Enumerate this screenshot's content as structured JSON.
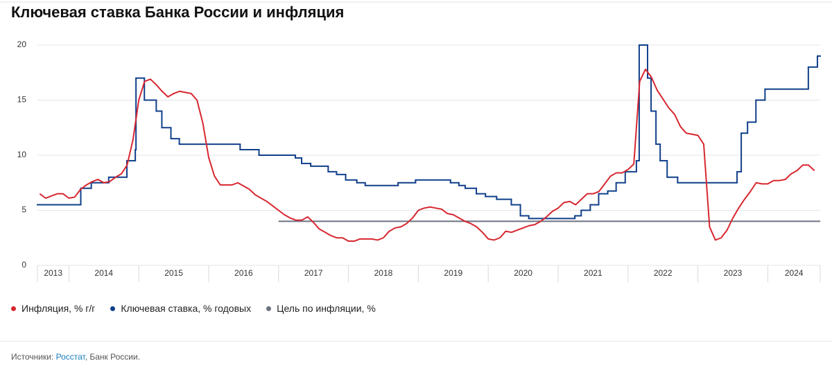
{
  "chart_data": {
    "type": "line",
    "title": "Ключевая ставка Банка России и инфляция",
    "xlim": [
      2013.55,
      2024.75
    ],
    "xticks": [
      {
        "value": 2013.55,
        "label": "2013"
      },
      2014,
      2015,
      2016,
      2017,
      2018,
      2019,
      2020,
      2021,
      2022,
      2023,
      2024
    ],
    "ylim": [
      0,
      20
    ],
    "yticks": [
      0,
      5,
      10,
      15,
      20
    ],
    "grid": true,
    "legend": "bottom",
    "series": [
      {
        "name": "Инфляция, % г/г",
        "color": "#d7262f",
        "step": false,
        "x": [
          2013.583,
          2013.667,
          2013.75,
          2013.833,
          2013.917,
          2014,
          2014.083,
          2014.167,
          2014.25,
          2014.333,
          2014.417,
          2014.5,
          2014.583,
          2014.667,
          2014.75,
          2014.833,
          2014.917,
          2015,
          2015.083,
          2015.167,
          2015.25,
          2015.333,
          2015.417,
          2015.5,
          2015.583,
          2015.667,
          2015.75,
          2015.833,
          2015.917,
          2016,
          2016.083,
          2016.167,
          2016.25,
          2016.333,
          2016.417,
          2016.5,
          2016.583,
          2016.667,
          2016.75,
          2016.833,
          2016.917,
          2017,
          2017.083,
          2017.167,
          2017.25,
          2017.333,
          2017.417,
          2017.5,
          2017.583,
          2017.667,
          2017.75,
          2017.833,
          2017.917,
          2018,
          2018.083,
          2018.167,
          2018.25,
          2018.333,
          2018.417,
          2018.5,
          2018.583,
          2018.667,
          2018.75,
          2018.833,
          2018.917,
          2019,
          2019.083,
          2019.167,
          2019.25,
          2019.333,
          2019.417,
          2019.5,
          2019.583,
          2019.667,
          2019.75,
          2019.833,
          2019.917,
          2020,
          2020.083,
          2020.167,
          2020.25,
          2020.333,
          2020.417,
          2020.5,
          2020.583,
          2020.667,
          2020.75,
          2020.833,
          2020.917,
          2021,
          2021.083,
          2021.167,
          2021.25,
          2021.333,
          2021.417,
          2021.5,
          2021.583,
          2021.667,
          2021.75,
          2021.833,
          2021.917,
          2022,
          2022.083,
          2022.167,
          2022.25,
          2022.333,
          2022.417,
          2022.5,
          2022.583,
          2022.667,
          2022.75,
          2022.833,
          2022.917,
          2023,
          2023.083,
          2023.167,
          2023.25,
          2023.333,
          2023.417,
          2023.5,
          2023.583,
          2023.667,
          2023.75,
          2023.833,
          2023.917,
          2024,
          2024.083,
          2024.167,
          2024.25,
          2024.333,
          2024.417,
          2024.5,
          2024.583,
          2024.667
        ],
        "values": [
          6.5,
          6.1,
          6.3,
          6.5,
          6.5,
          6.1,
          6.2,
          6.9,
          7.3,
          7.6,
          7.8,
          7.5,
          7.6,
          8.0,
          8.3,
          9.1,
          11.4,
          15.0,
          16.7,
          16.9,
          16.4,
          15.8,
          15.3,
          15.6,
          15.8,
          15.7,
          15.6,
          15.0,
          12.9,
          9.8,
          8.1,
          7.3,
          7.3,
          7.3,
          7.5,
          7.2,
          6.9,
          6.4,
          6.1,
          5.8,
          5.4,
          5.0,
          4.6,
          4.3,
          4.1,
          4.1,
          4.4,
          3.9,
          3.3,
          3.0,
          2.7,
          2.5,
          2.5,
          2.2,
          2.2,
          2.4,
          2.4,
          2.4,
          2.3,
          2.5,
          3.1,
          3.4,
          3.5,
          3.8,
          4.3,
          5.0,
          5.2,
          5.3,
          5.2,
          5.1,
          4.7,
          4.6,
          4.3,
          4.0,
          3.8,
          3.5,
          3.0,
          2.4,
          2.3,
          2.5,
          3.1,
          3.0,
          3.2,
          3.4,
          3.6,
          3.7,
          4.0,
          4.4,
          4.9,
          5.2,
          5.7,
          5.8,
          5.5,
          6.0,
          6.5,
          6.5,
          6.7,
          7.4,
          8.1,
          8.4,
          8.4,
          8.7,
          9.2,
          16.7,
          17.8,
          17.1,
          15.9,
          15.1,
          14.3,
          13.7,
          12.6,
          12.0,
          11.9,
          11.8,
          11.0,
          3.5,
          2.3,
          2.5,
          3.2,
          4.3,
          5.2,
          6.0,
          6.7,
          7.5,
          7.4,
          7.4,
          7.7,
          7.7,
          7.8,
          8.3,
          8.6,
          9.1,
          9.1,
          8.6
        ]
      },
      {
        "name": "Ключевая ставка, % годовых",
        "color": "#0f3f8a",
        "step": true,
        "x": [
          2013.55,
          2014.17,
          2014.32,
          2014.57,
          2014.83,
          2014.95,
          2014.96,
          2015.08,
          2015.25,
          2015.33,
          2015.46,
          2015.58,
          2016.45,
          2016.72,
          2017.24,
          2017.33,
          2017.46,
          2017.71,
          2017.83,
          2017.96,
          2018.12,
          2018.24,
          2018.71,
          2018.96,
          2019.46,
          2019.58,
          2019.67,
          2019.83,
          2019.96,
          2020.12,
          2020.33,
          2020.46,
          2020.58,
          2021.24,
          2021.33,
          2021.46,
          2021.58,
          2021.71,
          2021.83,
          2021.96,
          2022.12,
          2022.16,
          2022.28,
          2022.33,
          2022.4,
          2022.46,
          2022.56,
          2022.71,
          2023.56,
          2023.62,
          2023.71,
          2023.83,
          2023.96,
          2024.58,
          2024.71
        ],
        "values": [
          5.5,
          7,
          7.5,
          8,
          9.5,
          10.5,
          17,
          15,
          14,
          12.5,
          11.5,
          11,
          10.5,
          10,
          9.75,
          9.25,
          9,
          8.5,
          8.25,
          7.75,
          7.5,
          7.25,
          7.5,
          7.75,
          7.5,
          7.25,
          7,
          6.5,
          6.25,
          6,
          5.5,
          4.5,
          4.25,
          4.5,
          5,
          5.5,
          6.5,
          6.75,
          7.5,
          8.5,
          9.5,
          20,
          17,
          14,
          11,
          9.5,
          8,
          7.5,
          8.5,
          12,
          13,
          15,
          16,
          18,
          19
        ]
      },
      {
        "name": "Цель по инфляции, %",
        "color": "#6b7280",
        "step": false,
        "x": [
          2017,
          2024.75
        ],
        "values": [
          4,
          4
        ]
      }
    ]
  },
  "source": {
    "prefix": "Источники: ",
    "link": "Росстат",
    "suffix": ", Банк России."
  }
}
